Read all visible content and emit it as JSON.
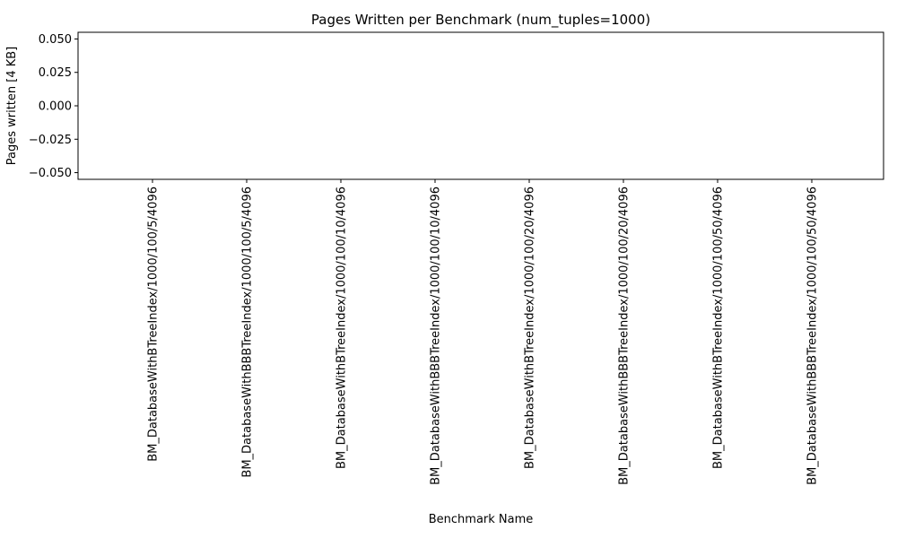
{
  "chart_data": {
    "type": "bar",
    "title": "Pages Written per Benchmark (num_tuples=1000)",
    "xlabel": "Benchmark Name",
    "ylabel": "Pages written [4 KB]",
    "categories": [
      "BM_DatabaseWithBTreeIndex/1000/100/5/4096",
      "BM_DatabaseWithBBBTreeIndex/1000/100/5/4096",
      "BM_DatabaseWithBTreeIndex/1000/100/10/4096",
      "BM_DatabaseWithBBBTreeIndex/1000/100/10/4096",
      "BM_DatabaseWithBTreeIndex/1000/100/20/4096",
      "BM_DatabaseWithBBBTreeIndex/1000/100/20/4096",
      "BM_DatabaseWithBTreeIndex/1000/100/50/4096",
      "BM_DatabaseWithBBBTreeIndex/1000/100/50/4096"
    ],
    "values": [
      0,
      0,
      0,
      0,
      0,
      0,
      0,
      0
    ],
    "ylim": [
      -0.055,
      0.055
    ],
    "yticks": [
      -0.05,
      -0.025,
      0.0,
      0.025,
      0.05
    ],
    "ytick_labels": [
      "−0.050",
      "−0.025",
      "0.000",
      "0.025",
      "0.050"
    ],
    "grid": false,
    "bar_color": "#1f77b4"
  }
}
